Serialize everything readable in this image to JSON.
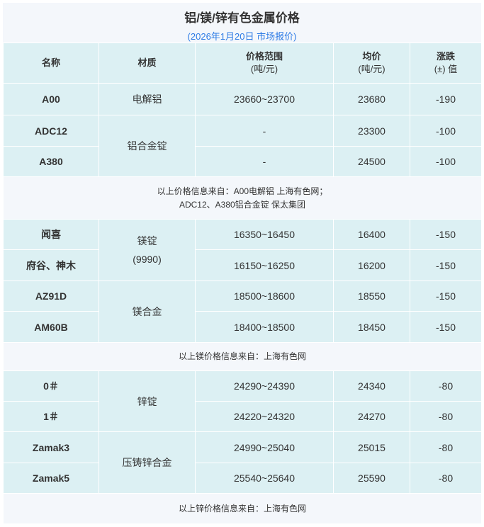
{
  "title": "铝/镁/锌有色金属价格",
  "subtitle": "(2026年1月20日 市场报价)",
  "headers": {
    "name": "名称",
    "material": "材质",
    "range": "价格范围",
    "range_unit": "(吨/元)",
    "avg": "均价",
    "avg_unit": "(吨/元)",
    "change": "涨跌",
    "change_unit": "(±) 值"
  },
  "groups": [
    {
      "rows": [
        {
          "name": "A00",
          "material": "电解铝",
          "range": "23660~23700",
          "avg": "23680",
          "change": "-190"
        },
        {
          "name": "ADC12",
          "material": "铝合金锭",
          "range": "-",
          "avg": "23300",
          "change": "-100"
        },
        {
          "name": "A380",
          "range": "-",
          "avg": "24500",
          "change": "-100"
        }
      ],
      "note": [
        "以上价格信息来自：A00电解铝 上海有色网；",
        "ADC12、A380铝合金锭 保太集团"
      ]
    },
    {
      "rows": [
        {
          "name": "闻喜",
          "material": "镁锭",
          "material2": "(9990)",
          "range": "16350~16450",
          "avg": "16400",
          "change": "-150"
        },
        {
          "name": "府谷、神木",
          "range": "16150~16250",
          "avg": "16200",
          "change": "-150"
        },
        {
          "name": "AZ91D",
          "material": "镁合金",
          "range": "18500~18600",
          "avg": "18550",
          "change": "-150"
        },
        {
          "name": "AM60B",
          "range": "18400~18500",
          "avg": "18450",
          "change": "-150"
        }
      ],
      "note": [
        "以上镁价格信息来自：上海有色网"
      ]
    },
    {
      "rows": [
        {
          "name": "0＃",
          "material": "锌锭",
          "range": "24290~24390",
          "avg": "24340",
          "change": "-80"
        },
        {
          "name": "1＃",
          "range": "24220~24320",
          "avg": "24270",
          "change": "-80"
        },
        {
          "name": "Zamak3",
          "material": "压铸锌合金",
          "range": "24990~25040",
          "avg": "25015",
          "change": "-80"
        },
        {
          "name": "Zamak5",
          "range": "25540~25640",
          "avg": "25590",
          "change": "-80"
        }
      ],
      "note": [
        "以上锌价格信息来自：上海有色网"
      ]
    }
  ]
}
